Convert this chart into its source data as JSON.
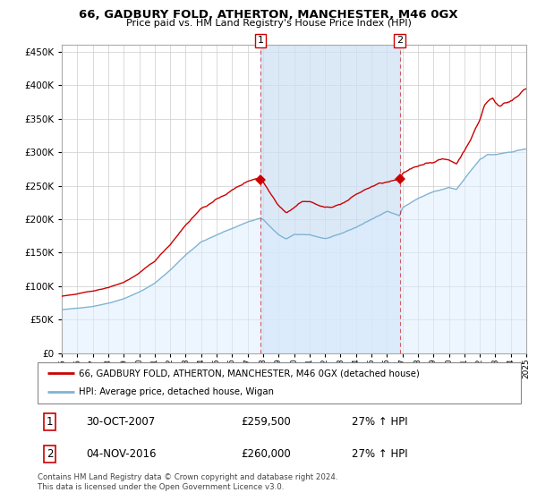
{
  "title": "66, GADBURY FOLD, ATHERTON, MANCHESTER, M46 0GX",
  "subtitle": "Price paid vs. HM Land Registry's House Price Index (HPI)",
  "legend_line1": "66, GADBURY FOLD, ATHERTON, MANCHESTER, M46 0GX (detached house)",
  "legend_line2": "HPI: Average price, detached house, Wigan",
  "annotation1_label": "1",
  "annotation1_date": "30-OCT-2007",
  "annotation1_price": "£259,500",
  "annotation1_hpi": "27% ↑ HPI",
  "annotation2_label": "2",
  "annotation2_date": "04-NOV-2016",
  "annotation2_price": "£260,000",
  "annotation2_hpi": "27% ↑ HPI",
  "footer": "Contains HM Land Registry data © Crown copyright and database right 2024.\nThis data is licensed under the Open Government Licence v3.0.",
  "red_color": "#cc0000",
  "blue_color": "#7fb3d3",
  "fill_color": "#ddeeff",
  "shade_color": "#cce0f5",
  "background_color": "#ffffff",
  "ylim": [
    0,
    460000
  ],
  "yticks": [
    0,
    50000,
    100000,
    150000,
    200000,
    250000,
    300000,
    350000,
    400000,
    450000
  ],
  "sale1_year": 2007.833,
  "sale1_y": 259500,
  "sale2_year": 2016.833,
  "sale2_y": 260000,
  "xmin": 1995,
  "xmax": 2025
}
